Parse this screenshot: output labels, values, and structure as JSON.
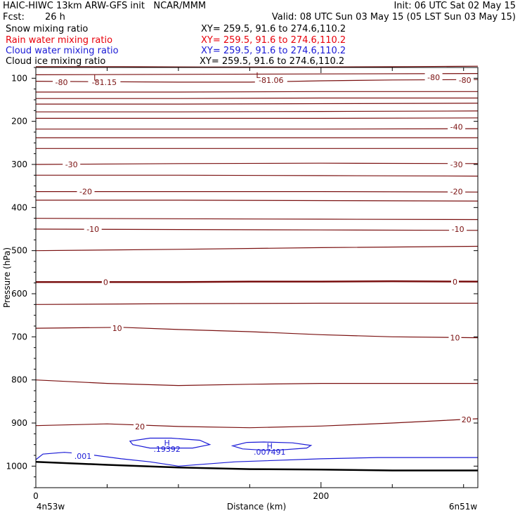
{
  "header": {
    "title_left": "HAIC-HIWC 13km ARW-GFS init   NCAR/MMM",
    "init": "Init: 06 UTC Sat 02 May 15",
    "fcst_label": "Fcst:",
    "fcst_value": "26 h",
    "valid": "Valid: 08 UTC Sun 03 May 15 (05 LST Sun 03 May 15)",
    "fields": [
      {
        "name": "Snow mixing ratio",
        "xy": "XY= 259.5, 91.6 to 274.6,110.2",
        "color": "#000000"
      },
      {
        "name": "Rain water mixing ratio",
        "xy": "XY= 259.5, 91.6 to 274.6,110.2",
        "color": "#e8000b"
      },
      {
        "name": "Cloud water mixing ratio",
        "xy": "XY= 259.5, 91.6 to 274.6,110.2",
        "color": "#1a1ad6"
      },
      {
        "name": "Cloud ice mixing ratio",
        "xy": "XY= 259.5, 91.6 to 274.6,110.2",
        "color": "#000000"
      }
    ]
  },
  "chart_data": {
    "type": "line",
    "xlabel": "Distance (km)",
    "ylabel": "Pressure (hPa)",
    "xlim": [
      0,
      310
    ],
    "ylim": [
      1050,
      75
    ],
    "x_ticks": [
      0,
      200
    ],
    "y_ticks": [
      100,
      200,
      300,
      400,
      500,
      600,
      700,
      800,
      900,
      1000
    ],
    "x_endpoint_labels": [
      "4n53w",
      "6n51w"
    ],
    "colors": {
      "temperature": "#7a1010",
      "cloud_water": "#1a1ad6",
      "terrain": "#000000"
    },
    "temperature_contours": [
      {
        "x": [
          0,
          60,
          120,
          200,
          260,
          310
        ],
        "p": [
          73,
          73,
          74,
          74,
          73,
          72
        ]
      },
      {
        "x": [
          0,
          100,
          200,
          310
        ],
        "p": [
          92,
          91,
          90,
          89
        ]
      },
      {
        "x": [
          0,
          40,
          100,
          150,
          200,
          250,
          310
        ],
        "p": [
          107,
          108,
          109,
          109,
          106,
          104,
          103
        ]
      },
      {
        "x": [
          0,
          100,
          200,
          310
        ],
        "p": [
          132,
          132,
          131,
          131
        ]
      },
      {
        "x": [
          0,
          100,
          200,
          310
        ],
        "p": [
          147,
          147,
          146,
          146
        ]
      },
      {
        "x": [
          0,
          100,
          200,
          310
        ],
        "p": [
          160,
          160,
          159,
          158
        ]
      },
      {
        "x": [
          0,
          100,
          200,
          310
        ],
        "p": [
          178,
          178,
          177,
          176
        ]
      },
      {
        "x": [
          0,
          100,
          200,
          310
        ],
        "p": [
          193,
          193,
          193,
          192
        ]
      },
      {
        "x": [
          0,
          100,
          200,
          310
        ],
        "p": [
          218,
          218,
          218,
          217
        ]
      },
      {
        "x": [
          0,
          100,
          200,
          310
        ],
        "p": [
          238,
          238,
          238,
          238
        ]
      },
      {
        "x": [
          0,
          100,
          200,
          310
        ],
        "p": [
          263,
          263,
          263,
          263
        ]
      },
      {
        "x": [
          0,
          100,
          200,
          310
        ],
        "p": [
          300,
          298,
          297,
          298
        ]
      },
      {
        "x": [
          0,
          100,
          200,
          310
        ],
        "p": [
          325,
          325,
          326,
          327
        ]
      },
      {
        "x": [
          0,
          100,
          200,
          310
        ],
        "p": [
          363,
          363,
          363,
          364
        ]
      },
      {
        "x": [
          0,
          100,
          200,
          310
        ],
        "p": [
          383,
          383,
          384,
          385
        ]
      },
      {
        "x": [
          0,
          100,
          200,
          310
        ],
        "p": [
          425,
          426,
          427,
          428
        ]
      },
      {
        "x": [
          0,
          100,
          200,
          310
        ],
        "p": [
          450,
          451,
          452,
          453
        ]
      },
      {
        "x": [
          0,
          100,
          200,
          310
        ],
        "p": [
          500,
          497,
          493,
          490
        ]
      },
      {
        "x": [
          0,
          50,
          100,
          150,
          200,
          250,
          310
        ],
        "p": [
          573,
          573,
          573,
          572,
          572,
          571,
          572
        ],
        "bold": true
      },
      {
        "x": [
          0,
          100,
          200,
          310
        ],
        "p": [
          625,
          623,
          622,
          622
        ]
      },
      {
        "x": [
          0,
          60,
          100,
          150,
          200,
          250,
          310
        ],
        "p": [
          680,
          678,
          683,
          688,
          695,
          700,
          702
        ]
      },
      {
        "x": [
          0,
          50,
          100,
          150,
          200,
          310
        ],
        "p": [
          800,
          808,
          813,
          810,
          808,
          808
        ]
      },
      {
        "x": [
          0,
          50,
          100,
          150,
          200,
          250,
          310
        ],
        "p": [
          906,
          902,
          908,
          911,
          907,
          900,
          890
        ]
      }
    ],
    "contour_labels": [
      {
        "text": "-80",
        "x": 18,
        "p": 109
      },
      {
        "text": "-81.15",
        "x": 48,
        "p": 109
      },
      {
        "text": "-81.06",
        "x": 165,
        "p": 104
      },
      {
        "text": "-80",
        "x": 279,
        "p": 98
      },
      {
        "text": "-80",
        "x": 301,
        "p": 104
      },
      {
        "text": "-40",
        "x": 295,
        "p": 213
      },
      {
        "text": "-30",
        "x": 25,
        "p": 300
      },
      {
        "text": "-30",
        "x": 295,
        "p": 300
      },
      {
        "text": "-20",
        "x": 35,
        "p": 363
      },
      {
        "text": "-20",
        "x": 295,
        "p": 363
      },
      {
        "text": "-10",
        "x": 40,
        "p": 450
      },
      {
        "text": "-10",
        "x": 296,
        "p": 450
      },
      {
        "text": "0",
        "x": 49,
        "p": 573
      },
      {
        "text": "0",
        "x": 294,
        "p": 572
      },
      {
        "text": "10",
        "x": 57,
        "p": 680
      },
      {
        "text": "10",
        "x": 294,
        "p": 702
      },
      {
        "text": "20",
        "x": 73,
        "p": 908
      },
      {
        "text": "20",
        "x": 302,
        "p": 892
      }
    ],
    "extrema": [
      {
        "text": "L",
        "x": 42,
        "p": 99
      },
      {
        "text": "L",
        "x": 156,
        "p": 93
      }
    ],
    "cloud_water": {
      "contour": {
        "x": [
          0,
          5,
          20,
          35,
          60,
          80,
          100,
          140,
          200,
          240,
          280,
          310
        ],
        "p": [
          985,
          972,
          968,
          972,
          983,
          990,
          1000,
          990,
          983,
          980,
          980,
          980
        ]
      },
      "labels": [
        {
          "text": ".001",
          "x": 33,
          "p": 977
        }
      ],
      "maxima": [
        {
          "text": "H",
          "x": 92,
          "p": 946,
          "value": ".19392",
          "value_p": 960
        },
        {
          "text": "H",
          "x": 164,
          "p": 953,
          "value": ".007491",
          "value_p": 967
        }
      ],
      "rings": [
        {
          "x": [
            80,
            66,
            68,
            80,
            110,
            122,
            115,
            95,
            80
          ],
          "p": [
            935,
            942,
            950,
            958,
            958,
            950,
            940,
            935,
            935
          ]
        },
        {
          "x": [
            148,
            138,
            145,
            165,
            190,
            193,
            180,
            160,
            148
          ],
          "p": [
            945,
            953,
            960,
            964,
            958,
            952,
            946,
            944,
            945
          ]
        }
      ]
    },
    "terrain": {
      "x": [
        0,
        50,
        100,
        150,
        200,
        250,
        310
      ],
      "p": [
        990,
        997,
        1003,
        1007,
        1008,
        1010,
        1010
      ]
    }
  }
}
